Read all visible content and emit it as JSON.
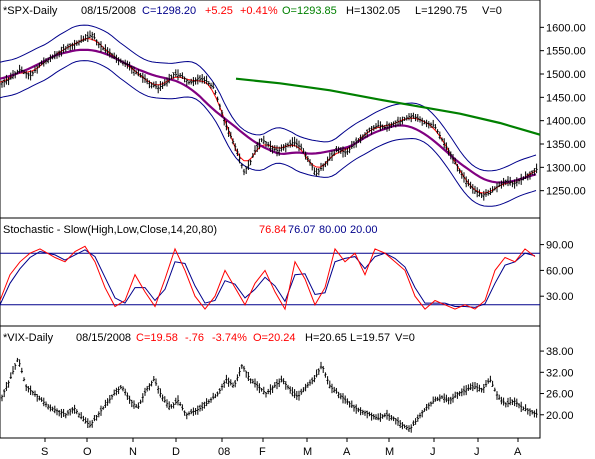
{
  "chart_data": [
    {
      "type": "ohlc",
      "title": "*SPX-Daily",
      "header": {
        "date": "08/15/2008",
        "close": "C=1298.20",
        "change": "+5.25",
        "pct": "+0.41%",
        "open": "O=1293.85",
        "high": "H=1302.05",
        "low": "L=1290.75",
        "volume": "V=0"
      },
      "ylim": [
        1200,
        1620
      ],
      "yticks": [
        "1600.00",
        "1550.00",
        "1500.00",
        "1450.00",
        "1400.00",
        "1350.00",
        "1300.00",
        "1250.00"
      ],
      "ytick_values": [
        1600,
        1550,
        1500,
        1450,
        1400,
        1350,
        1300,
        1250
      ],
      "close_path": [
        [
          0,
          1480
        ],
        [
          10,
          1490
        ],
        [
          20,
          1510
        ],
        [
          30,
          1495
        ],
        [
          40,
          1520
        ],
        [
          55,
          1540
        ],
        [
          65,
          1555
        ],
        [
          75,
          1565
        ],
        [
          85,
          1575
        ],
        [
          92,
          1585
        ],
        [
          100,
          1560
        ],
        [
          110,
          1545
        ],
        [
          118,
          1530
        ],
        [
          128,
          1520
        ],
        [
          135,
          1505
        ],
        [
          142,
          1495
        ],
        [
          150,
          1480
        ],
        [
          158,
          1470
        ],
        [
          166,
          1480
        ],
        [
          174,
          1500
        ],
        [
          182,
          1495
        ],
        [
          190,
          1480
        ],
        [
          198,
          1490
        ],
        [
          206,
          1485
        ],
        [
          214,
          1470
        ],
        [
          220,
          1430
        ],
        [
          226,
          1390
        ],
        [
          232,
          1360
        ],
        [
          238,
          1330
        ],
        [
          244,
          1290
        ],
        [
          250,
          1310
        ],
        [
          256,
          1340
        ],
        [
          262,
          1360
        ],
        [
          270,
          1345
        ],
        [
          278,
          1335
        ],
        [
          286,
          1345
        ],
        [
          294,
          1355
        ],
        [
          302,
          1340
        ],
        [
          310,
          1310
        ],
        [
          316,
          1285
        ],
        [
          322,
          1300
        ],
        [
          330,
          1320
        ],
        [
          338,
          1340
        ],
        [
          346,
          1330
        ],
        [
          354,
          1350
        ],
        [
          362,
          1365
        ],
        [
          370,
          1380
        ],
        [
          378,
          1390
        ],
        [
          386,
          1385
        ],
        [
          394,
          1395
        ],
        [
          402,
          1400
        ],
        [
          410,
          1410
        ],
        [
          418,
          1405
        ],
        [
          426,
          1395
        ],
        [
          434,
          1390
        ],
        [
          442,
          1360
        ],
        [
          450,
          1330
        ],
        [
          458,
          1300
        ],
        [
          466,
          1270
        ],
        [
          474,
          1250
        ],
        [
          482,
          1240
        ],
        [
          490,
          1245
        ],
        [
          498,
          1260
        ],
        [
          506,
          1270
        ],
        [
          514,
          1265
        ],
        [
          522,
          1275
        ],
        [
          530,
          1285
        ],
        [
          538,
          1298
        ]
      ],
      "bands": {
        "color_mid": "#ff0000",
        "color_band": "#00008b",
        "width": 38
      },
      "ma50_color": "#800080",
      "ma200_color": "#008000",
      "ma200_path": [
        [
          236,
          1490
        ],
        [
          280,
          1480
        ],
        [
          330,
          1465
        ],
        [
          380,
          1445
        ],
        [
          420,
          1430
        ],
        [
          460,
          1415
        ],
        [
          500,
          1395
        ],
        [
          540,
          1370
        ]
      ]
    },
    {
      "type": "line",
      "title": "Stochastic - Slow(High,Low,Close,14,20,80)",
      "readings": {
        "k": "76.84",
        "d": "76.07",
        "upper": "80.00",
        "lower": "20.00"
      },
      "ylim": [
        0,
        100
      ],
      "yticks": [
        "90.00",
        "60.00",
        "30.00"
      ],
      "ytick_values": [
        90,
        60,
        30
      ],
      "upper_line": 80,
      "lower_line": 20,
      "k_path": [
        [
          0,
          25
        ],
        [
          10,
          55
        ],
        [
          20,
          70
        ],
        [
          30,
          80
        ],
        [
          40,
          85
        ],
        [
          55,
          75
        ],
        [
          65,
          70
        ],
        [
          75,
          82
        ],
        [
          85,
          88
        ],
        [
          95,
          70
        ],
        [
          105,
          40
        ],
        [
          115,
          18
        ],
        [
          125,
          25
        ],
        [
          135,
          55
        ],
        [
          145,
          35
        ],
        [
          155,
          18
        ],
        [
          165,
          50
        ],
        [
          175,
          85
        ],
        [
          185,
          60
        ],
        [
          195,
          30
        ],
        [
          205,
          15
        ],
        [
          215,
          30
        ],
        [
          225,
          60
        ],
        [
          235,
          40
        ],
        [
          245,
          20
        ],
        [
          255,
          45
        ],
        [
          265,
          60
        ],
        [
          275,
          35
        ],
        [
          285,
          15
        ],
        [
          295,
          70
        ],
        [
          305,
          50
        ],
        [
          315,
          20
        ],
        [
          325,
          40
        ],
        [
          335,
          85
        ],
        [
          345,
          70
        ],
        [
          355,
          80
        ],
        [
          365,
          55
        ],
        [
          375,
          85
        ],
        [
          385,
          80
        ],
        [
          395,
          70
        ],
        [
          405,
          60
        ],
        [
          415,
          30
        ],
        [
          425,
          15
        ],
        [
          435,
          25
        ],
        [
          445,
          20
        ],
        [
          455,
          15
        ],
        [
          465,
          20
        ],
        [
          475,
          15
        ],
        [
          485,
          25
        ],
        [
          495,
          60
        ],
        [
          505,
          75
        ],
        [
          515,
          70
        ],
        [
          525,
          85
        ],
        [
          535,
          76
        ]
      ],
      "d_path": [
        [
          0,
          20
        ],
        [
          10,
          45
        ],
        [
          20,
          62
        ],
        [
          30,
          75
        ],
        [
          40,
          82
        ],
        [
          55,
          78
        ],
        [
          65,
          72
        ],
        [
          75,
          78
        ],
        [
          85,
          84
        ],
        [
          95,
          76
        ],
        [
          105,
          52
        ],
        [
          115,
          28
        ],
        [
          125,
          22
        ],
        [
          135,
          40
        ],
        [
          145,
          40
        ],
        [
          155,
          25
        ],
        [
          165,
          38
        ],
        [
          175,
          70
        ],
        [
          185,
          68
        ],
        [
          195,
          42
        ],
        [
          205,
          22
        ],
        [
          215,
          25
        ],
        [
          225,
          48
        ],
        [
          235,
          44
        ],
        [
          245,
          28
        ],
        [
          255,
          38
        ],
        [
          265,
          52
        ],
        [
          275,
          42
        ],
        [
          285,
          24
        ],
        [
          295,
          55
        ],
        [
          305,
          56
        ],
        [
          315,
          32
        ],
        [
          325,
          34
        ],
        [
          335,
          70
        ],
        [
          345,
          74
        ],
        [
          355,
          76
        ],
        [
          365,
          62
        ],
        [
          375,
          76
        ],
        [
          385,
          80
        ],
        [
          395,
          74
        ],
        [
          405,
          64
        ],
        [
          415,
          40
        ],
        [
          425,
          22
        ],
        [
          435,
          22
        ],
        [
          445,
          22
        ],
        [
          455,
          18
        ],
        [
          465,
          18
        ],
        [
          475,
          17
        ],
        [
          485,
          21
        ],
        [
          495,
          45
        ],
        [
          505,
          66
        ],
        [
          515,
          70
        ],
        [
          525,
          80
        ],
        [
          535,
          77
        ]
      ],
      "k_color": "#ff0000",
      "d_color": "#00008b"
    },
    {
      "type": "ohlc",
      "title": "*VIX-Daily",
      "header": {
        "date": "08/15/2008",
        "close": "C=19.58",
        "change": "-.76",
        "pct": "-3.74%",
        "open": "O=20.24",
        "high": "H=20.65",
        "low": "L=19.57",
        "volume": "V=0"
      },
      "ylim": [
        14,
        40
      ],
      "yticks": [
        "38.00",
        "32.00",
        "26.00",
        "20.00"
      ],
      "ytick_values": [
        38,
        32,
        26,
        20
      ],
      "close_path": [
        [
          0,
          24
        ],
        [
          10,
          30
        ],
        [
          18,
          36
        ],
        [
          26,
          28
        ],
        [
          34,
          26
        ],
        [
          42,
          24
        ],
        [
          50,
          22
        ],
        [
          58,
          21
        ],
        [
          66,
          20
        ],
        [
          74,
          22
        ],
        [
          82,
          19
        ],
        [
          90,
          17
        ],
        [
          98,
          20
        ],
        [
          106,
          23
        ],
        [
          114,
          26
        ],
        [
          122,
          28
        ],
        [
          130,
          24
        ],
        [
          138,
          22
        ],
        [
          146,
          27
        ],
        [
          154,
          30
        ],
        [
          162,
          25
        ],
        [
          170,
          22
        ],
        [
          178,
          24
        ],
        [
          186,
          20
        ],
        [
          194,
          21
        ],
        [
          202,
          22
        ],
        [
          210,
          24
        ],
        [
          218,
          26
        ],
        [
          226,
          30
        ],
        [
          234,
          28
        ],
        [
          242,
          34
        ],
        [
          250,
          30
        ],
        [
          258,
          28
        ],
        [
          266,
          26
        ],
        [
          274,
          28
        ],
        [
          282,
          30
        ],
        [
          290,
          27
        ],
        [
          298,
          25
        ],
        [
          306,
          28
        ],
        [
          314,
          30
        ],
        [
          322,
          34
        ],
        [
          330,
          28
        ],
        [
          338,
          26
        ],
        [
          346,
          24
        ],
        [
          354,
          22
        ],
        [
          362,
          21
        ],
        [
          370,
          20
        ],
        [
          378,
          19
        ],
        [
          386,
          20
        ],
        [
          394,
          19
        ],
        [
          402,
          17
        ],
        [
          410,
          16
        ],
        [
          418,
          19
        ],
        [
          426,
          22
        ],
        [
          434,
          24
        ],
        [
          442,
          25
        ],
        [
          450,
          24
        ],
        [
          458,
          26
        ],
        [
          466,
          27
        ],
        [
          474,
          28
        ],
        [
          482,
          27
        ],
        [
          490,
          30
        ],
        [
          498,
          25
        ],
        [
          506,
          23
        ],
        [
          514,
          24
        ],
        [
          522,
          22
        ],
        [
          530,
          21
        ],
        [
          538,
          20
        ]
      ]
    }
  ],
  "x_axis": {
    "labels": [
      "S",
      "O",
      "N",
      "D",
      "08",
      "F",
      "M",
      "A",
      "M",
      "J",
      "J",
      "A"
    ],
    "label_positions": [
      45,
      87,
      133,
      176,
      222,
      263,
      307,
      347,
      389,
      434,
      478,
      518
    ]
  },
  "colors": {
    "background": "#ffffff",
    "frame": "#000000",
    "price": "#000000",
    "header_close": "#00008b",
    "header_change": "#ff0000",
    "header_open": "#008000",
    "title": "#000000"
  }
}
